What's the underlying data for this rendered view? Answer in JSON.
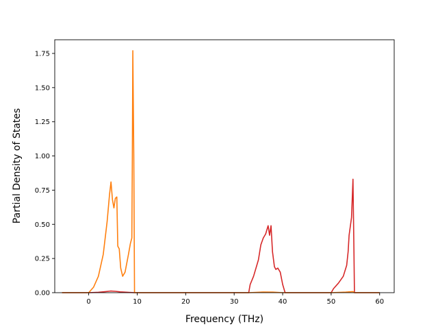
{
  "chart_data": {
    "type": "line",
    "title": "",
    "xlabel": "Frequency (THz)",
    "ylabel": "Partial Density of States",
    "xlim": [
      -7,
      63
    ],
    "ylim": [
      0,
      1.85
    ],
    "x_ticks": [
      0,
      10,
      20,
      30,
      40,
      50,
      60
    ],
    "x_tick_labels": [
      "0",
      "10",
      "20",
      "30",
      "40",
      "50",
      "60"
    ],
    "y_ticks": [
      0,
      0.25,
      0.5,
      0.75,
      1.0,
      1.25,
      1.5,
      1.75
    ],
    "y_tick_labels": [
      "0.00",
      "0.25",
      "0.50",
      "0.75",
      "1.00",
      "1.25",
      "1.50",
      "1.75"
    ],
    "grid": false,
    "legend": "none",
    "series": [
      {
        "color": "#d62728",
        "points": [
          [
            -5.5,
            0
          ],
          [
            0,
            0
          ],
          [
            2,
            0.003
          ],
          [
            3.5,
            0.008
          ],
          [
            4.5,
            0.012
          ],
          [
            5.5,
            0.01
          ],
          [
            6.5,
            0.006
          ],
          [
            8,
            0.003
          ],
          [
            9.5,
            0
          ],
          [
            33,
            0
          ],
          [
            33.3,
            0.06
          ],
          [
            34,
            0.12
          ],
          [
            35,
            0.24
          ],
          [
            35.5,
            0.35
          ],
          [
            36,
            0.4
          ],
          [
            36.5,
            0.43
          ],
          [
            37,
            0.49
          ],
          [
            37.3,
            0.42
          ],
          [
            37.6,
            0.49
          ],
          [
            37.9,
            0.3
          ],
          [
            38.3,
            0.19
          ],
          [
            38.6,
            0.17
          ],
          [
            39,
            0.18
          ],
          [
            39.5,
            0.15
          ],
          [
            40,
            0.06
          ],
          [
            40.5,
            0
          ],
          [
            50,
            0
          ],
          [
            50.5,
            0.03
          ],
          [
            51.5,
            0.07
          ],
          [
            52.5,
            0.12
          ],
          [
            53.2,
            0.2
          ],
          [
            53.5,
            0.3
          ],
          [
            53.7,
            0.42
          ],
          [
            54.2,
            0.55
          ],
          [
            54.5,
            0.83
          ],
          [
            54.7,
            0.3
          ],
          [
            54.8,
            0
          ],
          [
            60,
            0
          ]
        ]
      },
      {
        "color": "#ff7f0e",
        "points": [
          [
            -5.5,
            0
          ],
          [
            0,
            0
          ],
          [
            1,
            0.04
          ],
          [
            2,
            0.12
          ],
          [
            3,
            0.28
          ],
          [
            3.8,
            0.52
          ],
          [
            4.3,
            0.72
          ],
          [
            4.6,
            0.81
          ],
          [
            4.9,
            0.68
          ],
          [
            5.2,
            0.62
          ],
          [
            5.5,
            0.69
          ],
          [
            5.8,
            0.7
          ],
          [
            6.0,
            0.34
          ],
          [
            6.3,
            0.32
          ],
          [
            6.6,
            0.18
          ],
          [
            7,
            0.12
          ],
          [
            7.5,
            0.15
          ],
          [
            8.2,
            0.28
          ],
          [
            8.6,
            0.36
          ],
          [
            8.9,
            0.4
          ],
          [
            9.0,
            1.0
          ],
          [
            9.1,
            1.77
          ],
          [
            9.3,
            1.0
          ],
          [
            9.45,
            0
          ],
          [
            33,
            0
          ],
          [
            36,
            0.005
          ],
          [
            38,
            0.004
          ],
          [
            40,
            0
          ],
          [
            50,
            0
          ],
          [
            53,
            0.004
          ],
          [
            54.5,
            0.008
          ],
          [
            54.8,
            0
          ],
          [
            60,
            0
          ]
        ]
      }
    ]
  }
}
